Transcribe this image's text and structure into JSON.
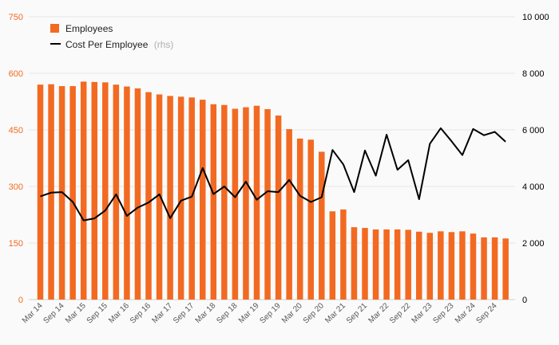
{
  "chart_data": {
    "type": "bar+line",
    "title": "",
    "xlabel": "",
    "ylabel_left": "",
    "ylabel_right": "",
    "ylim_left": [
      0,
      750
    ],
    "ylim_right": [
      0,
      10000
    ],
    "yticks_left": [
      "0",
      "150",
      "300",
      "450",
      "600",
      "750"
    ],
    "yticks_right": [
      "0",
      "2 000",
      "4 000",
      "6 000",
      "8 000",
      "10 000"
    ],
    "legend": {
      "position": "top-left",
      "bar_label": "Employees",
      "line_label": "Cost Per Employee",
      "line_suffix": "(rhs)"
    },
    "colors": {
      "bars": "#f26a22",
      "line": "#000000",
      "grid": "#e6e6e6",
      "left_axis": "#f26a22"
    },
    "x_tick_labels": [
      "Mar 14",
      "Sep 14",
      "Mar 15",
      "Sep 15",
      "Mar 16",
      "Sep 16",
      "Mar 17",
      "Sep 17",
      "Mar 18",
      "Sep 18",
      "Mar 19",
      "Sep 19",
      "Mar 20",
      "Sep 20",
      "Mar 21",
      "Sep 21",
      "Mar 22",
      "Sep 22",
      "Mar 23",
      "Sep 23",
      "Mar 24",
      "Sep 24"
    ],
    "series": [
      {
        "name": "Employees",
        "type": "bar",
        "axis": "left",
        "values": [
          570,
          571,
          566,
          566,
          578,
          577,
          576,
          570,
          565,
          560,
          550,
          544,
          540,
          538,
          536,
          530,
          518,
          516,
          506,
          510,
          514,
          505,
          488,
          452,
          427,
          424,
          392,
          234,
          239,
          192,
          190,
          186,
          186,
          186,
          185,
          180,
          177,
          181,
          179,
          181,
          175,
          165,
          165,
          162
        ]
      },
      {
        "name": "Cost Per Employee",
        "type": "line",
        "axis": "right",
        "values": [
          3650,
          3780,
          3800,
          3450,
          2800,
          2870,
          3150,
          3720,
          2960,
          3250,
          3430,
          3720,
          2880,
          3500,
          3640,
          4650,
          3730,
          4000,
          3620,
          4170,
          3530,
          3830,
          3800,
          4230,
          3670,
          3450,
          3620,
          5290,
          4780,
          3800,
          5270,
          4380,
          5830,
          4590,
          4930,
          3550,
          5510,
          6060,
          5600,
          5110,
          6030,
          5810,
          5930,
          5580
        ]
      }
    ]
  }
}
